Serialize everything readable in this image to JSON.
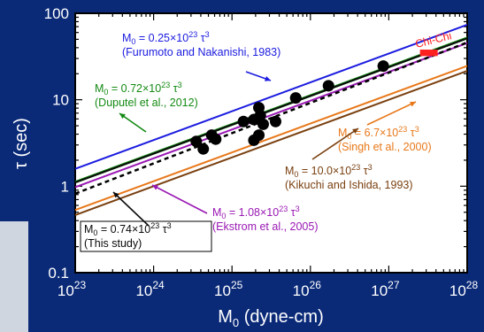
{
  "chart_data": {
    "type": "scatter",
    "xlabel_main": "M",
    "xlabel_sub": "0",
    "xlabel_rest": " (dyne-cm)",
    "ylabel": "τ (sec)",
    "xscale": "log",
    "yscale": "log",
    "xlim": [
      1e+23,
      1e+28
    ],
    "ylim": [
      0.1,
      100
    ],
    "x_ticks": [
      {
        "value": 1e+23,
        "base": "10",
        "exp": "23"
      },
      {
        "value": 1e+24,
        "base": "10",
        "exp": "24"
      },
      {
        "value": 1e+25,
        "base": "10",
        "exp": "25"
      },
      {
        "value": 1e+26,
        "base": "10",
        "exp": "26"
      },
      {
        "value": 1e+27,
        "base": "10",
        "exp": "27"
      },
      {
        "value": 1e+28,
        "base": "10",
        "exp": "28"
      }
    ],
    "y_ticks": [
      {
        "value": 0.1,
        "label": "0.1"
      },
      {
        "value": 1,
        "label": "1"
      },
      {
        "value": 10,
        "label": "10"
      },
      {
        "value": 100,
        "label": "100"
      }
    ],
    "points": [
      {
        "x": 3.5e+24,
        "y": 3.3
      },
      {
        "x": 4.3e+24,
        "y": 2.7
      },
      {
        "x": 5.5e+24,
        "y": 3.9
      },
      {
        "x": 6.2e+24,
        "y": 3.5
      },
      {
        "x": 1.4e+25,
        "y": 5.6
      },
      {
        "x": 1.9e+25,
        "y": 5.9
      },
      {
        "x": 2.2e+25,
        "y": 8.1
      },
      {
        "x": 2.3e+25,
        "y": 6.6
      },
      {
        "x": 2.5e+25,
        "y": 5.2
      },
      {
        "x": 1.9e+25,
        "y": 3.4
      },
      {
        "x": 2.2e+25,
        "y": 3.9
      },
      {
        "x": 3.6e+25,
        "y": 5.6
      },
      {
        "x": 6.5e+25,
        "y": 10.5
      },
      {
        "x": 1.7e+26,
        "y": 14.5
      },
      {
        "x": 8.5e+26,
        "y": 24.5
      }
    ],
    "highlight": {
      "label": "Chi-Chi",
      "color": "#ff2020",
      "x_range": [
        2.5e+27,
        4.2e+27
      ],
      "y_range": [
        32,
        38
      ]
    },
    "lines": [
      {
        "color": "#1b1be0",
        "coef": 0.25,
        "style": "solid",
        "width": 2,
        "label_main": "M",
        "label_sub": "0",
        "label_mid": " = 0.25×10",
        "label_exp": "23",
        "label_end": " τ",
        "label_end_exp": "3",
        "citation": "(Furumoto and Nakanishi, 1983)"
      },
      {
        "color": "#138a13",
        "coef": 0.72,
        "style": "solid",
        "width": 3,
        "label_main": "M",
        "label_sub": "0",
        "label_mid": " = 0.72×10",
        "label_exp": "23",
        "label_end": " τ",
        "label_end_exp": "3",
        "citation": "(Duputel et al., 2012)"
      },
      {
        "color": "#0a0a0a",
        "coef": 0.74,
        "style": "solid",
        "width": 2,
        "label_main": "M",
        "label_sub": "0",
        "label_mid": " = 0.74×10",
        "label_exp": "23",
        "label_end": " τ",
        "label_end_exp": "3",
        "citation": "(This study)"
      },
      {
        "color": "#9a18b4",
        "coef": 1.08,
        "style": "solid",
        "width": 2,
        "label_main": "M",
        "label_sub": "0",
        "label_mid": " = 1.08×10",
        "label_exp": "23",
        "label_end": " τ",
        "label_end_exp": "3",
        "citation": "(Ekstrom et al., 2005)"
      },
      {
        "color": "#e8781a",
        "coef": 6.7,
        "style": "solid",
        "width": 2,
        "label_main": "M",
        "label_sub": "0",
        "label_mid": " = 6.7×10",
        "label_exp": "23",
        "label_end": " τ",
        "label_end_exp": "3",
        "citation": "(Singh et al., 2000)"
      },
      {
        "color": "#7a4010",
        "coef": 10.0,
        "style": "solid",
        "width": 2,
        "label_main": "M",
        "label_sub": "0",
        "label_mid": " = 10.0×10",
        "label_exp": "23",
        "label_end": " τ",
        "label_end_exp": "3",
        "citation": "(Kikuchi and Ishida, 1993)"
      }
    ],
    "fit_line": {
      "color": "#000000",
      "style": "dashed",
      "y_at_1e23": 0.82,
      "y_at_1e28": 46
    },
    "colors": {
      "background": "#0a2a78",
      "plot_bg": "#ffffff",
      "text": "#ffffff"
    }
  }
}
